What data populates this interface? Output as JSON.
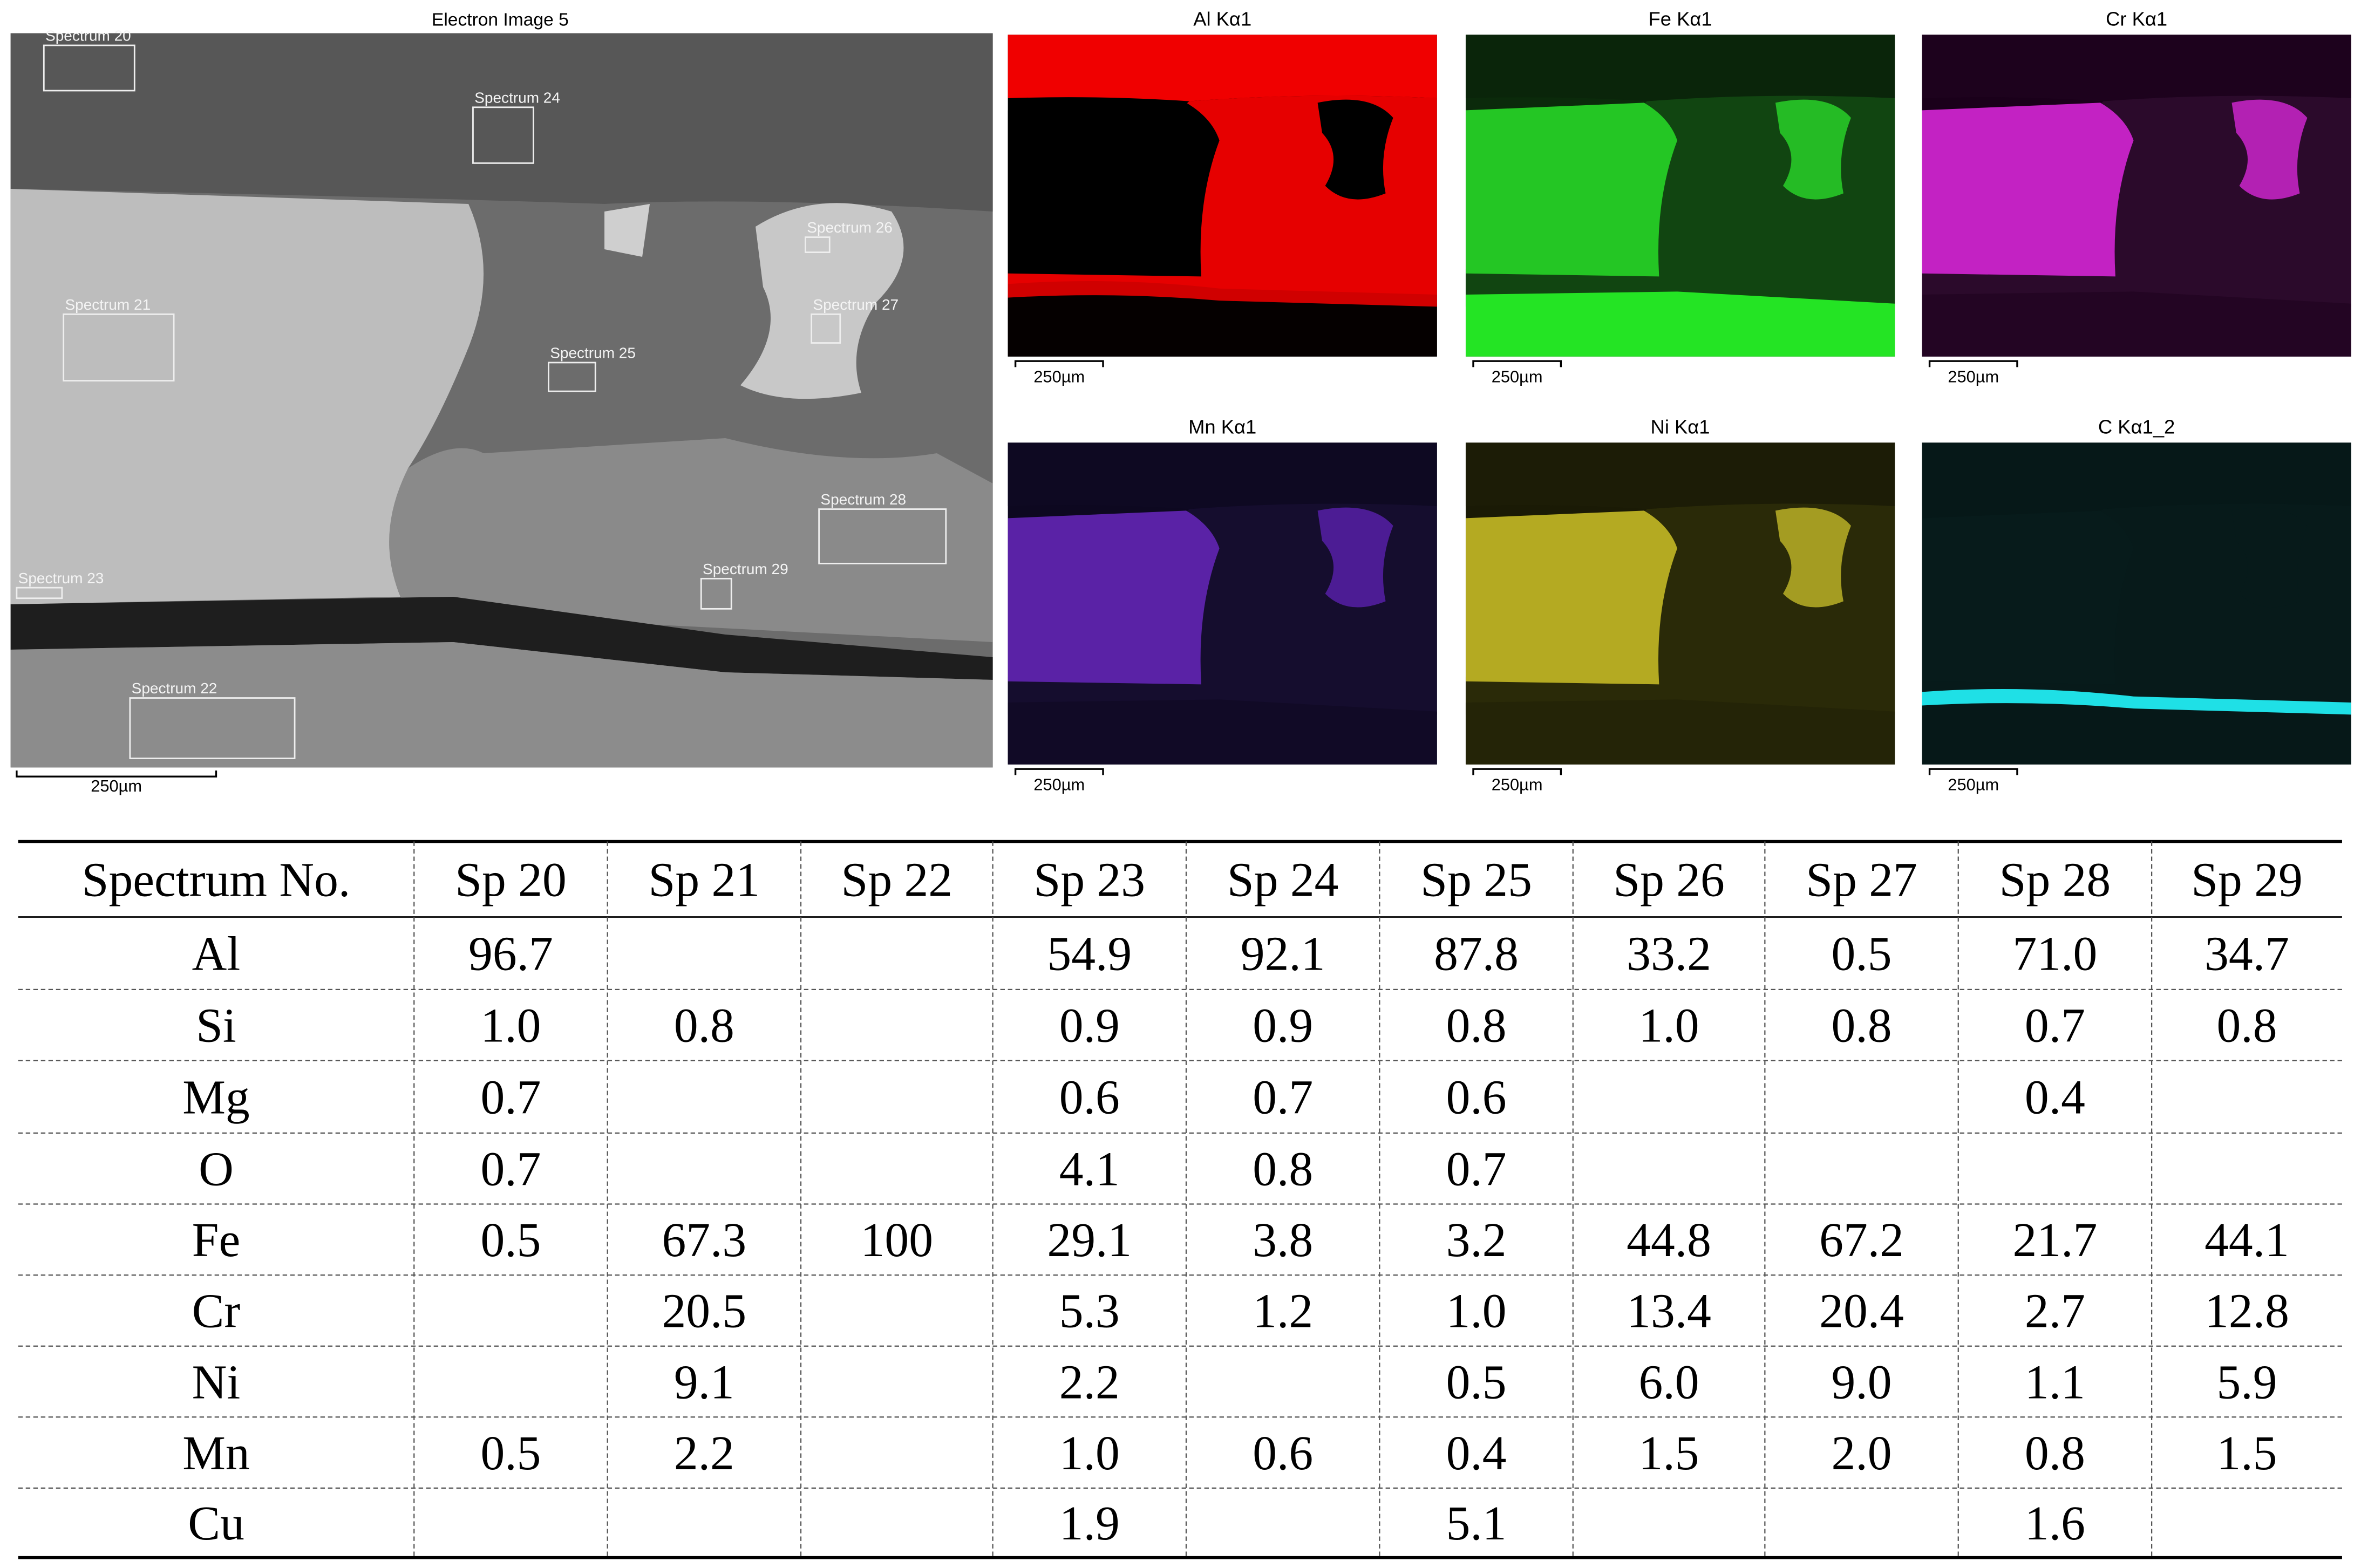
{
  "electron_image": {
    "title": "Electron Image 5",
    "scale_bar": "250µm",
    "spectra": [
      "Spectrum 20",
      "Spectrum 24",
      "Spectrum 26",
      "Spectrum 27",
      "Spectrum 21",
      "Spectrum 25",
      "Spectrum 28",
      "Spectrum 29",
      "Spectrum 23",
      "Spectrum 22"
    ]
  },
  "maps": [
    {
      "title": "Al Kα1",
      "scale_bar": "250µm"
    },
    {
      "title": "Fe Kα1",
      "scale_bar": "250µm"
    },
    {
      "title": "Cr Kα1",
      "scale_bar": "250µm"
    },
    {
      "title": "Mn Kα1",
      "scale_bar": "250µm"
    },
    {
      "title": "Ni Kα1",
      "scale_bar": "250µm"
    },
    {
      "title": "C Kα1_2",
      "scale_bar": "250µm"
    }
  ],
  "table": {
    "header": [
      "Spectrum No.",
      "Sp 20",
      "Sp 21",
      "Sp 22",
      "Sp 23",
      "Sp 24",
      "Sp 25",
      "Sp 26",
      "Sp 27",
      "Sp 28",
      "Sp 29"
    ],
    "rows": [
      [
        "Al",
        "96.7",
        null,
        null,
        "54.9",
        "92.1",
        "87.8",
        "33.2",
        "0.5",
        "71.0",
        "34.7"
      ],
      [
        "Si",
        "1.0",
        "0.8",
        null,
        "0.9",
        "0.9",
        "0.8",
        "1.0",
        "0.8",
        "0.7",
        "0.8"
      ],
      [
        "Mg",
        "0.7",
        null,
        null,
        "0.6",
        "0.7",
        "0.6",
        null,
        null,
        "0.4",
        null
      ],
      [
        "O",
        "0.7",
        null,
        null,
        "4.1",
        "0.8",
        "0.7",
        null,
        null,
        null,
        null
      ],
      [
        "Fe",
        "0.5",
        "67.3",
        "100",
        "29.1",
        "3.8",
        "3.2",
        "44.8",
        "67.2",
        "21.7",
        "44.1"
      ],
      [
        "Cr",
        null,
        "20.5",
        null,
        "5.3",
        "1.2",
        "1.0",
        "13.4",
        "20.4",
        "2.7",
        "12.8"
      ],
      [
        "Ni",
        null,
        "9.1",
        null,
        "2.2",
        null,
        "0.5",
        "6.0",
        "9.0",
        "1.1",
        "5.9"
      ],
      [
        "Mn",
        "0.5",
        "2.2",
        null,
        "1.0",
        "0.6",
        "0.4",
        "1.5",
        "2.0",
        "0.8",
        "1.5"
      ],
      [
        "Cu",
        null,
        null,
        null,
        "1.9",
        null,
        "5.1",
        null,
        null,
        "1.6",
        null
      ]
    ]
  }
}
